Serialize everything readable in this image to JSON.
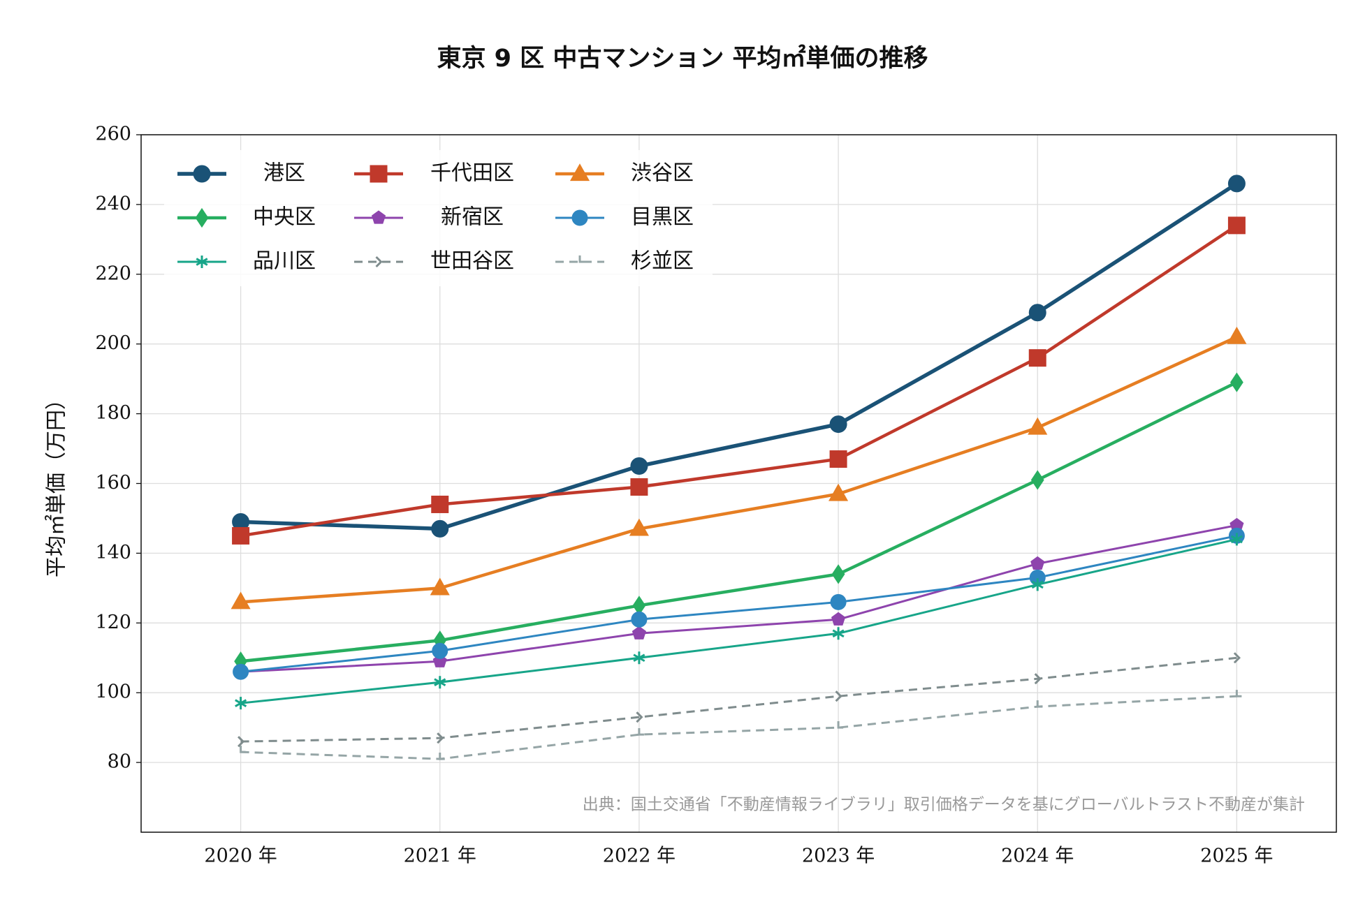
{
  "chart_data": {
    "type": "line",
    "title": "東京 9 区 中古マンション 平均㎡単価の推移",
    "y_label": "平均㎡単価（万円）",
    "annotation": "出典：国土交通省「不動産情報ライブラリ」取引価格データを基にグローバルトラスト不動産が集計",
    "categories": [
      "2020 年",
      "2021 年",
      "2022 年",
      "2023 年",
      "2024 年",
      "2025 年"
    ],
    "ylim": [
      60,
      260
    ],
    "yticks": [
      80,
      100,
      120,
      140,
      160,
      180,
      200,
      220,
      240,
      260
    ],
    "grid": true,
    "legend": "upper left",
    "series": [
      {
        "name": "港区",
        "color": "#1a5276",
        "marker": "circle",
        "values": [
          149,
          147,
          165,
          177,
          209,
          246
        ]
      },
      {
        "name": "千代田区",
        "color": "#c0392b",
        "marker": "square",
        "values": [
          145,
          154,
          159,
          167,
          196,
          234
        ]
      },
      {
        "name": "渋谷区",
        "color": "#e67e22",
        "marker": "triangle",
        "values": [
          126,
          130,
          147,
          157,
          176,
          202
        ]
      },
      {
        "name": "中央区",
        "color": "#27ae60",
        "marker": "diamond",
        "values": [
          109,
          115,
          125,
          134,
          161,
          189
        ]
      },
      {
        "name": "新宿区",
        "color": "#8e44ad",
        "marker": "pentagon",
        "values": [
          106,
          109,
          117,
          121,
          137,
          148
        ]
      },
      {
        "name": "目黒区",
        "color": "#2e86c1",
        "marker": "circle",
        "values": [
          106,
          112,
          121,
          126,
          133,
          145
        ]
      },
      {
        "name": "品川区",
        "color": "#17a589",
        "marker": "star",
        "values": [
          97,
          103,
          110,
          117,
          131,
          144
        ]
      },
      {
        "name": "世田谷区",
        "color": "#7f8c8d",
        "marker": "chevron",
        "dashed": true,
        "values": [
          86,
          87,
          93,
          99,
          104,
          110
        ]
      },
      {
        "name": "杉並区",
        "color": "#95a5a6",
        "marker": "tick",
        "dashed": true,
        "values": [
          83,
          81,
          88,
          90,
          96,
          99
        ]
      }
    ]
  }
}
